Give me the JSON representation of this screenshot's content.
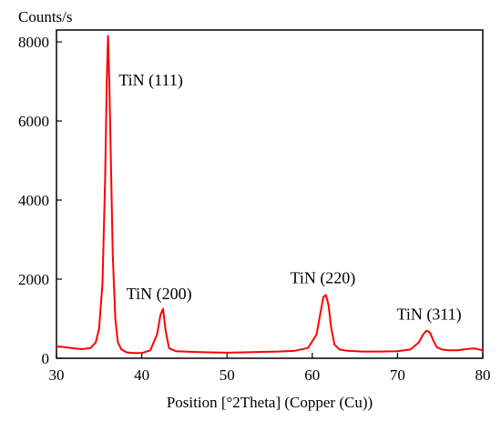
{
  "chart_data": {
    "type": "line",
    "title": "",
    "xlabel": "Position [°2Theta] (Copper (Cu))",
    "ylabel": "Counts/s",
    "xlim": [
      30,
      80
    ],
    "ylim": [
      0,
      8300
    ],
    "x_ticks": [
      30,
      40,
      50,
      60,
      70,
      80
    ],
    "y_ticks": [
      0,
      2000,
      4000,
      6000,
      8000
    ],
    "grid": false,
    "legend": "none",
    "series": [
      {
        "color": "#ff0000",
        "x": [
          30.0,
          31.0,
          32.0,
          33.0,
          34.0,
          34.6,
          35.0,
          35.4,
          35.7,
          35.9,
          36.05,
          36.2,
          36.4,
          36.6,
          36.9,
          37.2,
          37.6,
          38.2,
          39.0,
          40.0,
          41.0,
          41.8,
          42.2,
          42.5,
          42.8,
          43.2,
          44.0,
          46.0,
          48.0,
          50.0,
          52.0,
          54.0,
          56.0,
          58.0,
          59.5,
          60.5,
          61.0,
          61.3,
          61.6,
          61.9,
          62.2,
          62.6,
          63.2,
          64.0,
          66.0,
          68.0,
          70.0,
          71.5,
          72.5,
          73.0,
          73.4,
          73.8,
          74.2,
          74.6,
          75.2,
          76.0,
          77.0,
          78.0,
          79.0,
          80.0
        ],
        "y": [
          300,
          280,
          250,
          230,
          260,
          400,
          750,
          1900,
          4500,
          7000,
          8150,
          7000,
          4800,
          2600,
          1000,
          400,
          230,
          150,
          130,
          130,
          200,
          600,
          1100,
          1250,
          700,
          250,
          180,
          160,
          150,
          140,
          150,
          160,
          170,
          190,
          260,
          600,
          1200,
          1550,
          1600,
          1350,
          800,
          350,
          220,
          190,
          170,
          170,
          180,
          220,
          400,
          600,
          700,
          650,
          450,
          280,
          220,
          200,
          200,
          230,
          250,
          200
        ]
      }
    ],
    "annotations": [
      {
        "text": "TiN (111)",
        "x": 37.3,
        "y": 6900
      },
      {
        "text": "TiN (200)",
        "x": 38.2,
        "y": 1500
      },
      {
        "text": "TiN (220)",
        "x": 57.4,
        "y": 1900
      },
      {
        "text": "TiN (311)",
        "x": 69.9,
        "y": 980
      }
    ]
  }
}
